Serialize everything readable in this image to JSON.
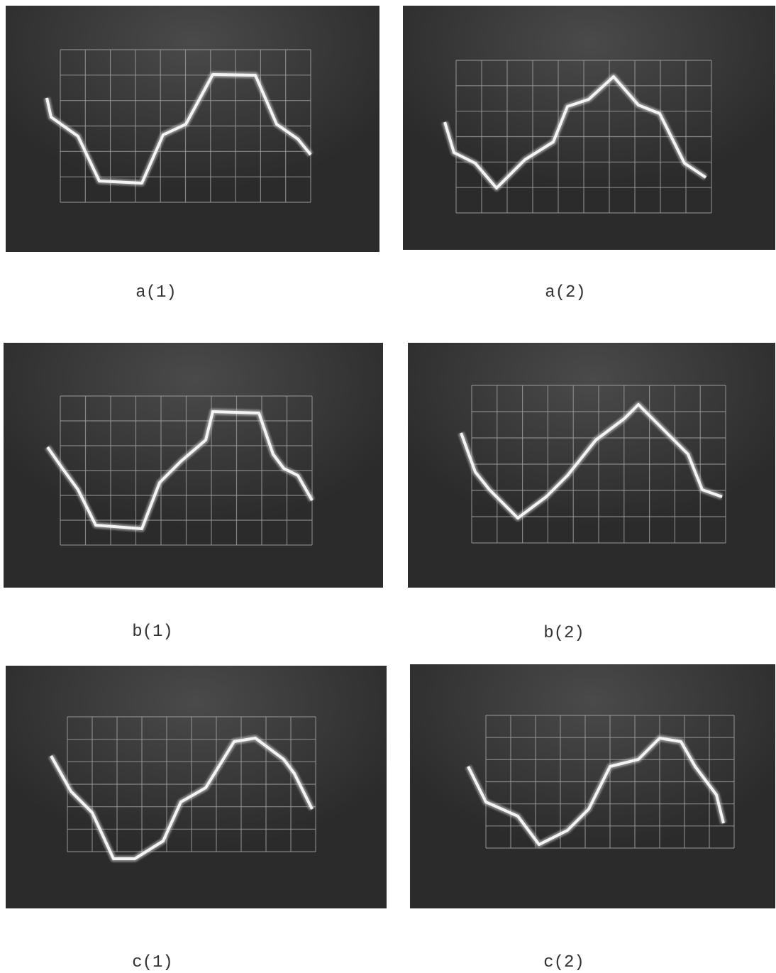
{
  "figures": [
    {
      "label": "a(1)"
    },
    {
      "label": "a(2)"
    },
    {
      "label": "b(1)"
    },
    {
      "label": "b(2)"
    },
    {
      "label": "c(1)"
    },
    {
      "label": "c(2)"
    }
  ]
}
